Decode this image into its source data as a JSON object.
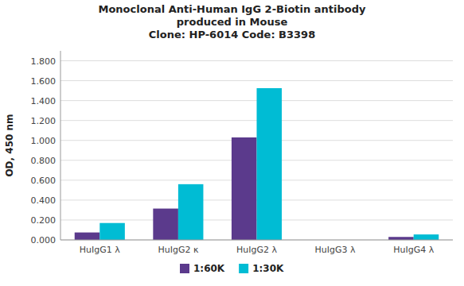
{
  "chart_data": {
    "type": "bar",
    "title": "Monoclonal Anti-Human IgG 2-Biotin antibody\nproduced in Mouse\nClone: HP-6014  Code: B3398",
    "ylabel": "OD, 450 nm",
    "categories": [
      "HuIgG1 λ",
      "HuIgG2 κ",
      "HuIgG2 λ",
      "HuIgG3 λ",
      "HuIgG4 λ"
    ],
    "series": [
      {
        "name": "1:60K",
        "color": "#5b3a8c",
        "values": [
          0.075,
          0.315,
          1.03,
          0.0,
          0.03
        ]
      },
      {
        "name": "1:30K",
        "color": "#00bcd4",
        "values": [
          0.17,
          0.56,
          1.525,
          0.0,
          0.055
        ]
      }
    ],
    "ylim": [
      0.0,
      1.9
    ],
    "yticks": [
      {
        "value": 0.0,
        "label": "0.000"
      },
      {
        "value": 0.2,
        "label": "0.200"
      },
      {
        "value": 0.4,
        "label": "0.400"
      },
      {
        "value": 0.6,
        "label": "0.600"
      },
      {
        "value": 0.8,
        "label": "0.800"
      },
      {
        "value": 1.0,
        "label": "1.000"
      },
      {
        "value": 1.2,
        "label": "1.200"
      },
      {
        "value": 1.4,
        "label": "1.400"
      },
      {
        "value": 1.6,
        "label": "1.600"
      },
      {
        "value": 1.8,
        "label": "1.800"
      }
    ],
    "grid": true,
    "legend": "bottom"
  }
}
